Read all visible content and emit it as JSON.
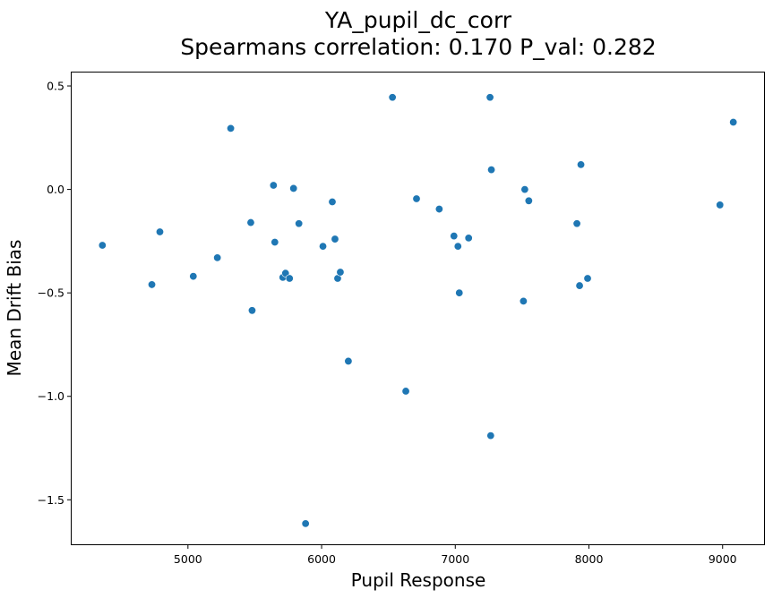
{
  "chart_data": {
    "type": "scatter",
    "title": "YA_pupil_dc_corr",
    "subtitle": "Spearmans correlation: 0.170 P_val: 0.282",
    "xlabel": "Pupil Response",
    "ylabel": "Mean Drift Bias",
    "xlim": [
      4130,
      9310
    ],
    "ylim": [
      -1.715,
      0.565
    ],
    "xticks": [
      {
        "value": 5000,
        "label": "5000"
      },
      {
        "value": 6000,
        "label": "6000"
      },
      {
        "value": 7000,
        "label": "7000"
      },
      {
        "value": 8000,
        "label": "8000"
      },
      {
        "value": 9000,
        "label": "9000"
      }
    ],
    "yticks": [
      {
        "value": 0.5,
        "label": "0.5"
      },
      {
        "value": 0.0,
        "label": "0.0"
      },
      {
        "value": -0.5,
        "label": "−0.5"
      },
      {
        "value": -1.0,
        "label": "−1.0"
      },
      {
        "value": -1.5,
        "label": "−1.5"
      }
    ],
    "grid": false,
    "color": "#1f77b4",
    "points": [
      {
        "x": 4360,
        "y": -0.27
      },
      {
        "x": 4730,
        "y": -0.46
      },
      {
        "x": 4790,
        "y": -0.205
      },
      {
        "x": 5040,
        "y": -0.42
      },
      {
        "x": 5220,
        "y": -0.33
      },
      {
        "x": 5320,
        "y": 0.295
      },
      {
        "x": 5470,
        "y": -0.16
      },
      {
        "x": 5480,
        "y": -0.585
      },
      {
        "x": 5640,
        "y": 0.02
      },
      {
        "x": 5650,
        "y": -0.255
      },
      {
        "x": 5710,
        "y": -0.425
      },
      {
        "x": 5730,
        "y": -0.405
      },
      {
        "x": 5760,
        "y": -0.43
      },
      {
        "x": 5790,
        "y": 0.005
      },
      {
        "x": 5830,
        "y": -0.165
      },
      {
        "x": 5880,
        "y": -1.615
      },
      {
        "x": 6010,
        "y": -0.275
      },
      {
        "x": 6080,
        "y": -0.06
      },
      {
        "x": 6100,
        "y": -0.24
      },
      {
        "x": 6120,
        "y": -0.43
      },
      {
        "x": 6140,
        "y": -0.4
      },
      {
        "x": 6200,
        "y": -0.83
      },
      {
        "x": 6530,
        "y": 0.445
      },
      {
        "x": 6630,
        "y": -0.975
      },
      {
        "x": 6710,
        "y": -0.045
      },
      {
        "x": 6880,
        "y": -0.095
      },
      {
        "x": 6990,
        "y": -0.225
      },
      {
        "x": 7020,
        "y": -0.275
      },
      {
        "x": 7030,
        "y": -0.5
      },
      {
        "x": 7100,
        "y": -0.235
      },
      {
        "x": 7260,
        "y": 0.445
      },
      {
        "x": 7265,
        "y": -1.19
      },
      {
        "x": 7270,
        "y": 0.095
      },
      {
        "x": 7510,
        "y": -0.54
      },
      {
        "x": 7520,
        "y": 0.0
      },
      {
        "x": 7550,
        "y": -0.055
      },
      {
        "x": 7910,
        "y": -0.165
      },
      {
        "x": 7930,
        "y": -0.465
      },
      {
        "x": 7940,
        "y": 0.12
      },
      {
        "x": 7990,
        "y": -0.43
      },
      {
        "x": 8980,
        "y": -0.075
      },
      {
        "x": 9080,
        "y": 0.325
      }
    ]
  }
}
